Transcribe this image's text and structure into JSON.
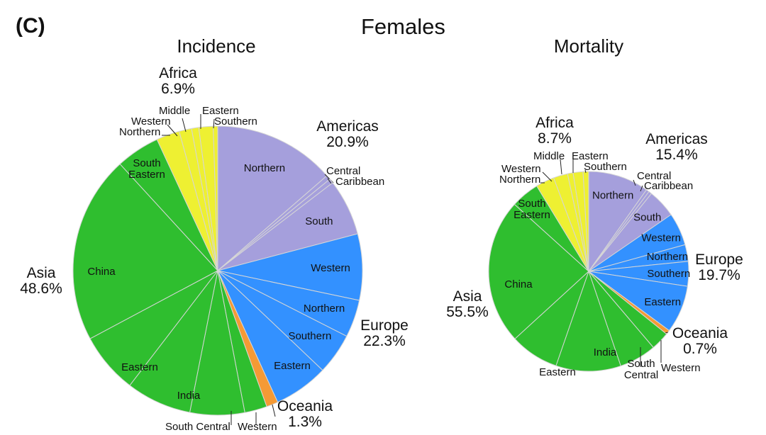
{
  "panel_label": "(C)",
  "main_title": "Females",
  "colors": {
    "Americas": "#a59fdc",
    "Europe": "#3391ff",
    "Oceania": "#f59a35",
    "Asia": "#2fbe2f",
    "Africa": "#eef032"
  },
  "chart_data": [
    {
      "type": "pie",
      "title": "Incidence",
      "groups": [
        {
          "name": "Americas",
          "percent_label": "20.9%",
          "slices": [
            {
              "label": "Northern",
              "value": 13.6
            },
            {
              "label": "Central",
              "value": 0.5
            },
            {
              "label": "Caribbean",
              "value": 0.5
            },
            {
              "label": "South",
              "value": 6.3
            }
          ]
        },
        {
          "name": "Europe",
          "percent_label": "22.3%",
          "slices": [
            {
              "label": "Western",
              "value": 7.4
            },
            {
              "label": "Northern",
              "value": 4.2
            },
            {
              "label": "Southern",
              "value": 4.6
            },
            {
              "label": "Eastern",
              "value": 6.1
            }
          ]
        },
        {
          "name": "Oceania",
          "percent_label": "1.3%",
          "slices": [
            {
              "label": "",
              "value": 1.3
            }
          ]
        },
        {
          "name": "Asia",
          "percent_label": "48.6%",
          "slices": [
            {
              "label": "Western",
              "value": 2.5
            },
            {
              "label": "South Central",
              "value": 6.1
            },
            {
              "label": "India",
              "value": 7.3
            },
            {
              "label": "Eastern",
              "value": 6.8
            },
            {
              "label": "China",
              "value": 21.0
            },
            {
              "label": "South Eastern",
              "value": 4.9
            }
          ]
        },
        {
          "name": "Africa",
          "percent_label": "6.9%",
          "slices": [
            {
              "label": "Northern",
              "value": 2.6
            },
            {
              "label": "Western",
              "value": 1.4
            },
            {
              "label": "Middle",
              "value": 0.8
            },
            {
              "label": "Eastern",
              "value": 1.6
            },
            {
              "label": "Southern",
              "value": 0.5
            }
          ]
        }
      ]
    },
    {
      "type": "pie",
      "title": "Mortality",
      "groups": [
        {
          "name": "Americas",
          "percent_label": "15.4%",
          "slices": [
            {
              "label": "Northern",
              "value": 9.8
            },
            {
              "label": "Central",
              "value": 0.5
            },
            {
              "label": "Caribbean",
              "value": 0.5
            },
            {
              "label": "South",
              "value": 4.6
            }
          ]
        },
        {
          "name": "Europe",
          "percent_label": "19.7%",
          "slices": [
            {
              "label": "Western",
              "value": 5.3
            },
            {
              "label": "Northern",
              "value": 2.7
            },
            {
              "label": "Southern",
              "value": 4.0
            },
            {
              "label": "Eastern",
              "value": 7.7
            }
          ]
        },
        {
          "name": "Oceania",
          "percent_label": "0.7%",
          "slices": [
            {
              "label": "",
              "value": 0.7
            }
          ]
        },
        {
          "name": "Asia",
          "percent_label": "55.5%",
          "slices": [
            {
              "label": "Western",
              "value": 3.0
            },
            {
              "label": "South Central",
              "value": 6.0
            },
            {
              "label": "India",
              "value": 10.5
            },
            {
              "label": "Eastern",
              "value": 7.9
            },
            {
              "label": "China",
              "value": 23.5
            },
            {
              "label": "South Eastern",
              "value": 4.6
            }
          ]
        },
        {
          "name": "Africa",
          "percent_label": "8.7%",
          "slices": [
            {
              "label": "Northern",
              "value": 3.0
            },
            {
              "label": "Western",
              "value": 2.3
            },
            {
              "label": "Middle",
              "value": 0.9
            },
            {
              "label": "Eastern",
              "value": 1.6
            },
            {
              "label": "Southern",
              "value": 0.9
            }
          ]
        }
      ]
    }
  ]
}
